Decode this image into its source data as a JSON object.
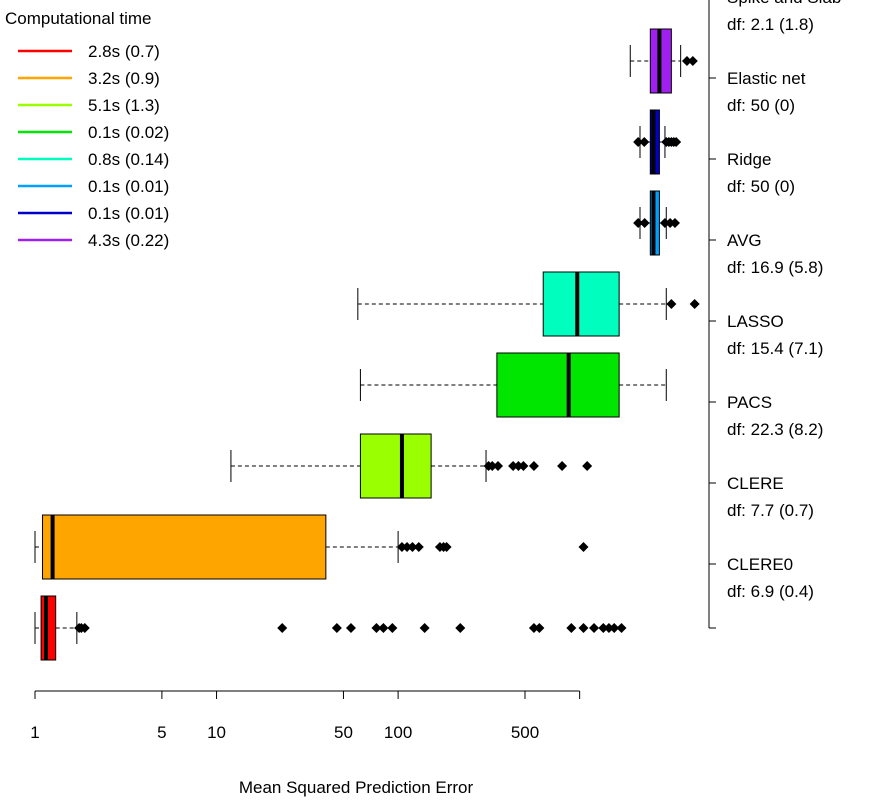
{
  "chart_data": {
    "type": "boxplot",
    "orientation": "horizontal",
    "xlabel": "Mean Squared Prediction Error",
    "x_scale": "log",
    "x_ticks": [
      1,
      5,
      10,
      50,
      100,
      500
    ],
    "legend": {
      "title": "Computational time",
      "placement": "top-left",
      "entries": [
        {
          "label": "2.8s (0.7)",
          "color": "#ff0000"
        },
        {
          "label": "3.2s (0.9)",
          "color": "#ffa500"
        },
        {
          "label": "5.1s (1.3)",
          "color": "#9aff00"
        },
        {
          "label": "0.1s (0.02)",
          "color": "#00e600"
        },
        {
          "label": "0.8s (0.14)",
          "color": "#00ffbf"
        },
        {
          "label": "0.1s (0.01)",
          "color": "#00a0ff"
        },
        {
          "label": "0.1s (0.01)",
          "color": "#0000c8"
        },
        {
          "label": "4.3s (0.22)",
          "color": "#a020f0"
        }
      ]
    },
    "series": [
      {
        "name": "CLERE0",
        "df": "df: 6.9 (0.4)",
        "color": "#ff0000",
        "stats": [
          1.0,
          1.08,
          1.15,
          1.3,
          1.7
        ],
        "outliers": [
          1.75,
          1.8,
          1.88,
          23,
          46,
          55,
          76,
          83,
          93,
          140,
          220,
          560,
          600,
          900,
          1050,
          1200,
          1350,
          1450,
          1550,
          1700
        ]
      },
      {
        "name": "CLERE",
        "df": "df: 7.7 (0.7)",
        "color": "#ffa500",
        "stats": [
          1.0,
          1.1,
          1.25,
          40,
          100
        ],
        "outliers": [
          105,
          112,
          120,
          130,
          170,
          178,
          185,
          1050
        ]
      },
      {
        "name": "PACS",
        "df": "df: 22.3 (8.2)",
        "color": "#9aff00",
        "stats": [
          12,
          62,
          105,
          152,
          305
        ],
        "outliers": [
          315,
          330,
          355,
          430,
          460,
          490,
          560,
          800,
          1100
        ]
      },
      {
        "name": "LASSO",
        "df": "df: 15.4 (7.1)",
        "color": "#00e600",
        "stats": [
          62,
          350,
          870,
          1650,
          3000
        ]
      },
      {
        "name": "AVG",
        "df": "df: 16.9 (5.8)",
        "color": "#00ffbf",
        "stats": [
          60,
          630,
          970,
          1650,
          3000
        ],
        "outliers": [
          3200,
          4300
        ]
      },
      {
        "name": "Ridge",
        "df": "df: 50 (0)",
        "color": "#00a0ff",
        "stats": [
          2150,
          2450,
          2550,
          2750,
          3000
        ],
        "outliers": [
          2100,
          2280,
          2950,
          3150,
          3350
        ]
      },
      {
        "name": "Elastic net",
        "df": "df: 50 (0)",
        "color": "#0000c8",
        "stats": [
          2150,
          2450,
          2550,
          2750,
          2950
        ],
        "outliers": [
          2100,
          2270,
          3000,
          3100,
          3200,
          3300,
          3400
        ]
      },
      {
        "name": "Spike and Slab",
        "df": "df: 2.1 (1.8)",
        "color": "#a020f0",
        "stats": [
          1900,
          2450,
          2750,
          3200,
          3600
        ],
        "outliers": [
          3900,
          4200
        ]
      }
    ]
  }
}
